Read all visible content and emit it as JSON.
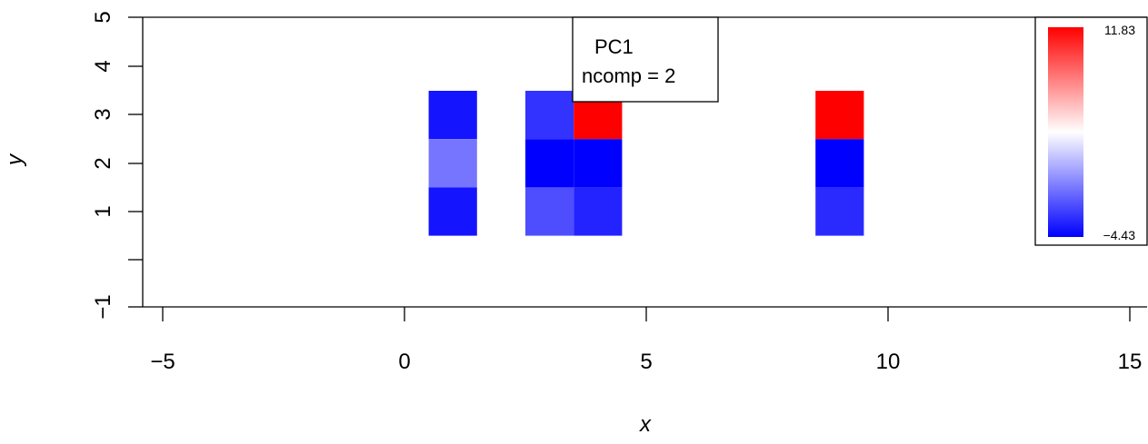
{
  "chart_data": {
    "type": "heatmap",
    "title": "",
    "xlabel": "x",
    "ylabel": "y",
    "xlim": [
      -5.4,
      15.4
    ],
    "ylim": [
      -1.15,
      5.15
    ],
    "xticks": [
      "-5",
      "0",
      "5",
      "10",
      "15"
    ],
    "yticks": [
      "-1",
      "1",
      "2",
      "3",
      "4",
      "5"
    ],
    "annotation": [
      "PC1",
      "ncomp = 2"
    ],
    "colorbar": {
      "min": -4.43,
      "max": 11.83,
      "min_label": "−4.43",
      "max_label": "11.83",
      "low_color": "#0000ff",
      "mid_color": "#ffffff",
      "high_color": "#ff0000"
    },
    "cells": [
      {
        "x": 1,
        "y": 3,
        "value": -3.8
      },
      {
        "x": 1,
        "y": 2,
        "value": -0.7
      },
      {
        "x": 1,
        "y": 1,
        "value": -3.8
      },
      {
        "x": 3,
        "y": 3,
        "value": -2.8
      },
      {
        "x": 3,
        "y": 2,
        "value": -4.43
      },
      {
        "x": 3,
        "y": 1,
        "value": -1.95
      },
      {
        "x": 4,
        "y": 3,
        "value": 11.83
      },
      {
        "x": 4,
        "y": 2,
        "value": -4.43
      },
      {
        "x": 4,
        "y": 1,
        "value": -3.3
      },
      {
        "x": 9,
        "y": 3,
        "value": 11.83
      },
      {
        "x": 9,
        "y": 2,
        "value": -4.43
      },
      {
        "x": 9,
        "y": 1,
        "value": -3.1
      }
    ]
  }
}
